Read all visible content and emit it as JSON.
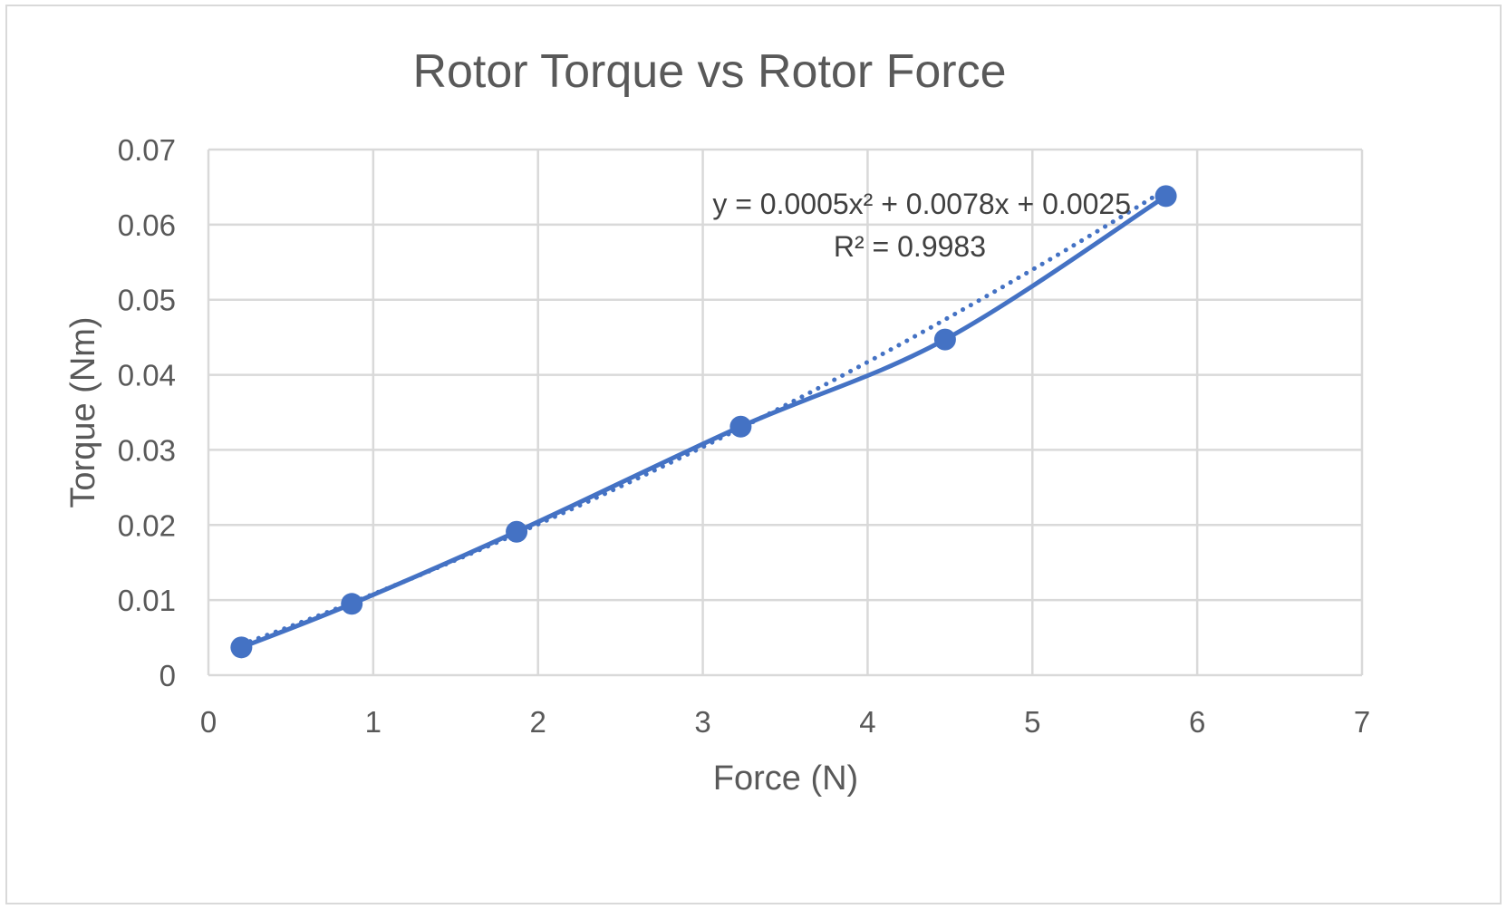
{
  "chart_data": {
    "type": "scatter",
    "title": "Rotor Torque vs Rotor Force",
    "xlabel": "Force (N)",
    "ylabel": "Torque (Nm)",
    "xlim": [
      0,
      7
    ],
    "ylim": [
      0,
      0.07
    ],
    "x_ticks": [
      "0",
      "1",
      "2",
      "3",
      "4",
      "5",
      "6",
      "7"
    ],
    "y_ticks": [
      "0",
      "0.01",
      "0.02",
      "0.03",
      "0.04",
      "0.05",
      "0.06",
      "0.07"
    ],
    "grid": true,
    "series": [
      {
        "x": [
          0.2,
          0.87,
          1.87,
          3.23,
          4.47,
          5.81
        ],
        "y": [
          0.0037,
          0.0095,
          0.0191,
          0.0331,
          0.0447,
          0.0638
        ],
        "color": "#4472c4",
        "line": "smooth",
        "markers": "circle"
      }
    ],
    "trendline": {
      "type": "polynomial",
      "order": 2,
      "coefficients": [
        0.0005,
        0.0078,
        0.0025
      ],
      "style": "dotted",
      "color": "#4472c4",
      "equation": "y = 0.0005x² + 0.0078x + 0.0025",
      "r_squared": "R² = 0.9983"
    }
  }
}
